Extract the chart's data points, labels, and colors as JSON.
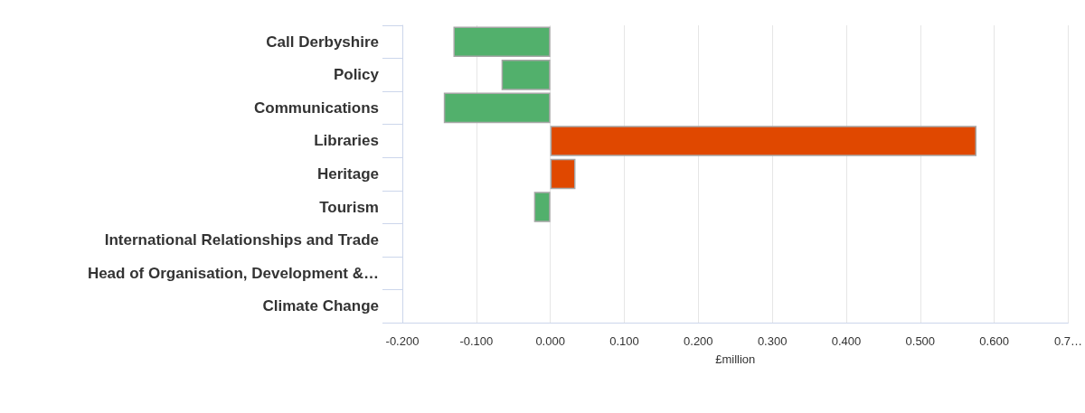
{
  "chart_data": {
    "type": "bar",
    "orientation": "horizontal",
    "xlabel": "£million",
    "categories": [
      "Call Derbyshire",
      "Policy",
      "Communications",
      "Libraries",
      "Heritage",
      "Tourism",
      "International Relationships and Trade",
      "Head of Organisation, Development &…",
      "Climate Change"
    ],
    "values": [
      -0.131,
      -0.066,
      -0.144,
      0.576,
      0.034,
      -0.022,
      null,
      null,
      null
    ],
    "colors": [
      "#52b06c",
      "#52b06c",
      "#52b06c",
      "#e04800",
      "#e04800",
      "#52b06c",
      "#52b06c",
      "#52b06c",
      "#52b06c"
    ],
    "xlim": [
      -0.2,
      0.7
    ],
    "xticks": [
      {
        "value": -0.2,
        "label": "-0.200"
      },
      {
        "value": -0.1,
        "label": "-0.100"
      },
      {
        "value": 0,
        "label": "0.000"
      },
      {
        "value": 0.1,
        "label": "0.100"
      },
      {
        "value": 0.2,
        "label": "0.200"
      },
      {
        "value": 0.3,
        "label": "0.300"
      },
      {
        "value": 0.4,
        "label": "0.400"
      },
      {
        "value": 0.5,
        "label": "0.500"
      },
      {
        "value": 0.6,
        "label": "0.600"
      },
      {
        "value": 0.7,
        "label": "0.7…"
      }
    ],
    "grid": "x"
  }
}
